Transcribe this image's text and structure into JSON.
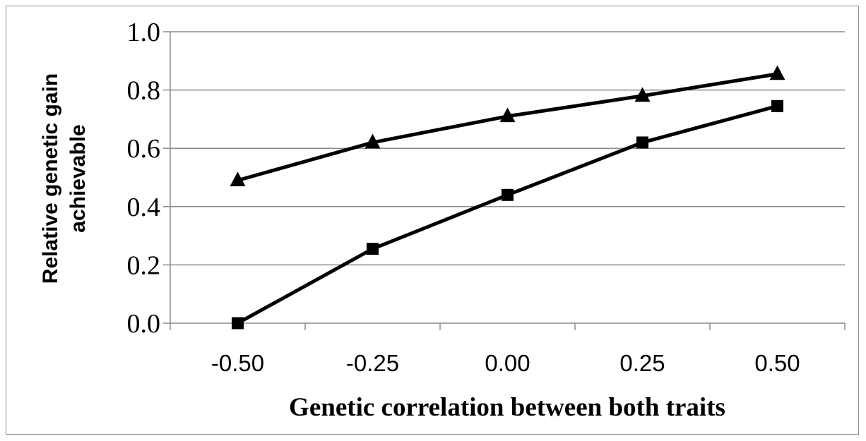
{
  "chart_data": {
    "type": "line",
    "title": "",
    "xlabel": "Genetic correlation between both traits",
    "ylabel_lines": [
      "Relative genetic gain",
      "achievable"
    ],
    "x": [
      -0.5,
      -0.25,
      0.0,
      0.25,
      0.5
    ],
    "x_tick_labels": [
      "-0.50",
      "-0.25",
      "0.00",
      "0.25",
      "0.50"
    ],
    "y_tick_labels": [
      "0.0",
      "0.2",
      "0.4",
      "0.6",
      "0.8",
      "1.0"
    ],
    "y_ticks": [
      0,
      0.2,
      0.4,
      0.6,
      0.8,
      1.0
    ],
    "ylim": [
      0,
      1.0
    ],
    "grid": true,
    "legend": "none",
    "line_color": "#000000",
    "grid_color": "#8c8c8c",
    "series": [
      {
        "marker": "triangle",
        "values": [
          0.49,
          0.62,
          0.71,
          0.78,
          0.855
        ]
      },
      {
        "marker": "square",
        "values": [
          0.0,
          0.255,
          0.44,
          0.62,
          0.745
        ]
      }
    ]
  }
}
